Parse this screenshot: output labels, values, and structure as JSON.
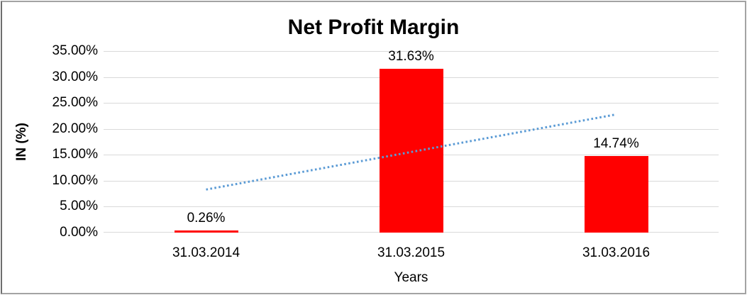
{
  "chart_data": {
    "type": "bar",
    "title": "Net Profit Margin",
    "xlabel": "Years",
    "ylabel": "IN (%)",
    "categories": [
      "31.03.2014",
      "31.03.2015",
      "31.03.2016"
    ],
    "values": [
      0.26,
      31.63,
      14.74
    ],
    "data_labels": [
      "0.26%",
      "31.63%",
      "14.74%"
    ],
    "y_ticks_top_to_bottom": [
      "35.00%",
      "30.00%",
      "25.00%",
      "20.00%",
      "15.00%",
      "10.00%",
      "5.00%",
      "0.00%"
    ],
    "ylim": [
      0,
      35
    ],
    "grid": true,
    "legend": "none",
    "colors": {
      "bar": "#ff0000",
      "trendline": "#5b9bd5",
      "gridline": "#d9d9d9",
      "text": "#000000",
      "background": "#ffffff"
    },
    "trendline": {
      "type": "linear",
      "style": "dotted",
      "start_category_index": 0,
      "end_category_index": 2,
      "start_value_pct": 8.3,
      "end_value_pct": 22.78
    }
  }
}
